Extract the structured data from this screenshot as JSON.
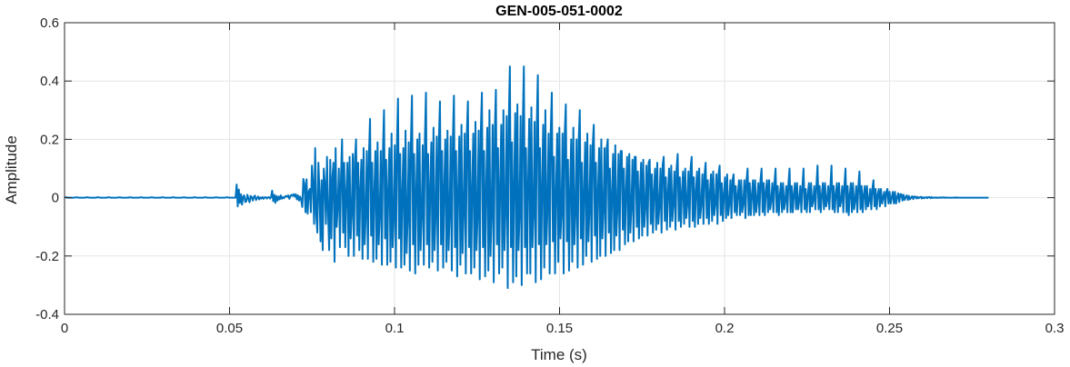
{
  "chart_data": {
    "type": "line",
    "title": "GEN-005-051-0002",
    "xlabel": "Time (s)",
    "ylabel": "Amplitude",
    "xlim": [
      0,
      0.3
    ],
    "ylim": [
      -0.4,
      0.6
    ],
    "xticks": [
      0,
      0.05,
      0.1,
      0.15,
      0.2,
      0.25,
      0.3
    ],
    "xtick_labels": [
      "0",
      "0.05",
      "0.1",
      "0.15",
      "0.2",
      "0.25",
      "0.3"
    ],
    "yticks": [
      -0.4,
      -0.2,
      0,
      0.2,
      0.4,
      0.6
    ],
    "ytick_labels": [
      "-0.4",
      "-0.2",
      "0",
      "0.2",
      "0.4",
      "0.6"
    ],
    "grid": true,
    "series": [
      {
        "color": "#0072BD",
        "sample_period_s": 0.0002,
        "x_start": 0,
        "x_end": 0.28,
        "values": [
          0.001,
          0.001,
          0.001,
          0,
          0,
          0,
          0,
          0,
          0,
          0,
          0.001,
          0.001,
          0.001,
          0,
          0,
          0,
          0,
          0,
          0,
          0,
          0.001,
          0.001,
          0.001,
          0,
          0,
          0,
          0,
          0,
          0,
          0,
          0.001,
          0.001,
          0.001,
          0,
          0,
          0,
          0,
          0,
          0,
          0,
          0.001,
          0.001,
          0.001,
          0,
          0,
          0,
          0,
          0,
          0,
          0,
          0.001,
          0.001,
          0.001,
          0,
          0,
          0,
          0,
          0,
          0,
          0,
          0.001,
          0.001,
          0.001,
          0,
          0,
          0,
          0,
          0,
          0,
          0,
          0.001,
          0.001,
          0.001,
          0,
          0,
          0,
          0,
          0,
          0,
          0,
          0.001,
          0.001,
          0.001,
          0,
          0,
          0,
          0,
          0,
          0,
          0,
          0.001,
          0.001,
          0.001,
          0,
          0,
          0,
          0,
          0,
          0,
          0,
          0.001,
          0.001,
          0.001,
          0,
          0,
          0,
          0,
          0,
          0,
          0,
          0.001,
          0.001,
          0.001,
          0,
          0,
          0,
          0,
          0,
          0,
          0,
          0.001,
          0.001,
          0.001,
          0,
          0,
          0,
          0,
          0,
          0,
          0,
          0.001,
          0.001,
          0.001,
          0,
          0,
          0,
          0,
          0,
          0,
          0,
          0.001,
          0.001,
          0.001,
          0,
          0,
          0,
          0,
          0,
          0,
          0,
          0.001,
          0.001,
          0.001,
          0,
          0,
          0,
          0,
          0,
          0,
          0,
          0.045,
          -0.03,
          0.028,
          -0.018,
          0.012,
          -0.024,
          0.004,
          0.008,
          -0.015,
          -0.012,
          0.01,
          -0.004,
          -0.016,
          0.006,
          0.002,
          -0.01,
          0.003,
          0.007,
          -0.008,
          -0.002,
          0.004,
          -0.006,
          0.001,
          -0.003,
          0.002,
          -0.004,
          0.001,
          0.002,
          -0.003,
          0.001,
          0.002,
          -0.003,
          0.002,
          0.024,
          -0.012,
          0.01,
          -0.018,
          0.006,
          -0.01,
          0.004,
          -0.006,
          0.008,
          -0.004,
          0.002,
          -0.002,
          0.004,
          0.006,
          0.003,
          0.008,
          -0.004,
          0.006,
          0.01,
          0.006,
          0.012,
          0.004,
          0.012,
          -0.006,
          0.008,
          -0.01,
          0.004,
          -0.008,
          -0.032,
          0.064,
          0.048,
          -0.05,
          0.063,
          -0.055,
          0.02,
          0.03,
          -0.05,
          0.11,
          0.05,
          -0.09,
          0.17,
          -0.06,
          -0.12,
          0.12,
          0.02,
          -0.15,
          0.06,
          -0.18,
          0.1,
          0.05,
          -0.09,
          0.14,
          -0.05,
          -0.18,
          0.13,
          -0.14,
          0.07,
          0.12,
          -0.22,
          0.17,
          -0.1,
          -0.03,
          0.1,
          -0.17,
          0.07,
          0.2,
          -0.12,
          0.12,
          -0.17,
          0.02,
          0.12,
          -0.2,
          0.14,
          -0.14,
          -0.05,
          0.15,
          -0.2,
          0.13,
          0.2,
          -0.13,
          0.12,
          -0.18,
          0.03,
          0.13,
          -0.21,
          0.17,
          -0.16,
          -0.06,
          0.16,
          -0.21,
          0.15,
          0.27,
          -0.13,
          0.12,
          -0.22,
          0.02,
          0.16,
          -0.21,
          0.19,
          -0.16,
          -0.06,
          0.16,
          -0.23,
          0.16,
          0.3,
          -0.14,
          0.13,
          -0.23,
          0.03,
          0.17,
          -0.22,
          0.22,
          -0.17,
          -0.07,
          0.18,
          -0.24,
          0.18,
          0.34,
          -0.14,
          0.15,
          -0.24,
          0.02,
          0.17,
          -0.23,
          0.23,
          -0.19,
          -0.07,
          0.19,
          -0.25,
          0.19,
          0.35,
          -0.16,
          0.15,
          -0.26,
          0.03,
          0.2,
          -0.23,
          0.22,
          -0.18,
          -0.06,
          0.18,
          -0.23,
          0.2,
          0.36,
          -0.16,
          0.15,
          -0.24,
          0.04,
          0.19,
          -0.22,
          0.24,
          -0.18,
          -0.06,
          0.21,
          -0.25,
          0.2,
          0.33,
          -0.16,
          0.16,
          -0.24,
          0.04,
          0.2,
          -0.22,
          0.23,
          -0.18,
          -0.06,
          0.21,
          -0.25,
          0.2,
          0.35,
          -0.17,
          0.16,
          -0.27,
          0.03,
          0.21,
          -0.23,
          0.25,
          -0.19,
          -0.05,
          0.22,
          -0.26,
          0.22,
          0.33,
          -0.17,
          0.16,
          -0.26,
          0.04,
          0.22,
          -0.24,
          0.26,
          -0.18,
          -0.06,
          0.23,
          -0.28,
          0.23,
          0.36,
          -0.17,
          0.16,
          -0.27,
          0.04,
          0.24,
          -0.25,
          0.3,
          -0.2,
          -0.05,
          0.25,
          -0.29,
          0.23,
          0.37,
          -0.16,
          0.17,
          -0.26,
          0.05,
          0.25,
          -0.24,
          0.3,
          -0.18,
          -0.04,
          0.28,
          -0.31,
          0.27,
          0.45,
          -0.17,
          0.19,
          -0.29,
          0.06,
          0.29,
          -0.27,
          0.32,
          -0.18,
          -0.06,
          0.28,
          -0.3,
          0.25,
          0.45,
          -0.17,
          0.17,
          -0.26,
          0.06,
          0.27,
          -0.26,
          0.31,
          -0.17,
          -0.05,
          0.26,
          -0.29,
          0.25,
          0.42,
          -0.16,
          0.17,
          -0.28,
          0.05,
          0.25,
          -0.24,
          0.3,
          -0.16,
          -0.04,
          0.22,
          -0.26,
          0.23,
          0.36,
          -0.15,
          0.14,
          -0.26,
          0.03,
          0.22,
          -0.22,
          0.24,
          -0.14,
          -0.05,
          0.22,
          -0.26,
          0.22,
          0.32,
          -0.15,
          0.13,
          -0.25,
          0.03,
          0.2,
          -0.22,
          0.24,
          -0.16,
          -0.05,
          0.2,
          -0.24,
          0.2,
          0.3,
          -0.14,
          0.12,
          -0.23,
          0.03,
          0.19,
          -0.2,
          0.22,
          -0.15,
          -0.04,
          0.18,
          -0.22,
          0.18,
          0.25,
          -0.13,
          0.12,
          -0.21,
          0.03,
          0.17,
          -0.2,
          0.2,
          -0.14,
          -0.04,
          0.17,
          -0.2,
          0.17,
          0.2,
          -0.12,
          0.1,
          -0.19,
          0.02,
          0.15,
          -0.18,
          0.18,
          -0.13,
          -0.04,
          0.15,
          -0.18,
          0.16,
          0.16,
          -0.11,
          0.1,
          -0.16,
          0.02,
          0.14,
          -0.15,
          0.15,
          -0.12,
          -0.03,
          0.13,
          -0.15,
          0.14,
          0.14,
          -0.1,
          0.09,
          -0.14,
          0.02,
          0.12,
          -0.13,
          0.13,
          -0.1,
          -0.03,
          0.11,
          -0.13,
          0.12,
          0.13,
          -0.09,
          0.08,
          -0.12,
          0.02,
          0.1,
          -0.11,
          0.12,
          -0.09,
          -0.03,
          0.1,
          -0.12,
          0.11,
          0.14,
          -0.08,
          0.07,
          -0.11,
          0.02,
          0.1,
          -0.1,
          0.11,
          -0.08,
          -0.02,
          0.09,
          -0.11,
          0.1,
          0.15,
          -0.08,
          0.07,
          -0.1,
          0.02,
          0.09,
          -0.09,
          0.1,
          -0.07,
          -0.02,
          0.09,
          -0.1,
          0.1,
          0.14,
          -0.08,
          0.07,
          -0.1,
          0.02,
          0.09,
          -0.09,
          0.1,
          -0.07,
          -0.02,
          0.08,
          -0.09,
          0.08,
          0.12,
          -0.07,
          0.06,
          -0.09,
          0.02,
          0.08,
          -0.08,
          0.09,
          -0.06,
          -0.02,
          0.08,
          -0.09,
          0.08,
          0.11,
          -0.06,
          0.05,
          -0.08,
          0.01,
          0.07,
          -0.07,
          0.08,
          -0.06,
          -0.02,
          0.06,
          -0.07,
          0.06,
          0.08,
          -0.05,
          0.04,
          -0.06,
          0.01,
          0.06,
          -0.06,
          0.06,
          -0.05,
          -0.02,
          0.06,
          -0.07,
          0.06,
          0.1,
          -0.06,
          0.05,
          -0.06,
          0.01,
          0.06,
          -0.06,
          0.06,
          -0.05,
          -0.01,
          0.05,
          -0.06,
          0.06,
          0.1,
          -0.05,
          0.05,
          -0.06,
          0.02,
          0.06,
          -0.05,
          0.06,
          -0.04,
          -0.01,
          0.05,
          -0.05,
          0.05,
          0.1,
          -0.05,
          0.04,
          -0.06,
          0.01,
          0.05,
          -0.05,
          0.05,
          -0.04,
          -0.01,
          0.04,
          -0.05,
          0.05,
          0.1,
          -0.05,
          0.04,
          -0.05,
          0.01,
          0.05,
          -0.04,
          0.05,
          -0.04,
          -0.01,
          0.04,
          -0.05,
          0.04,
          0.1,
          -0.04,
          0.03,
          -0.05,
          0.01,
          0.05,
          -0.05,
          0.05,
          -0.03,
          -0.01,
          0.04,
          -0.04,
          0.04,
          0.11,
          -0.04,
          0.04,
          -0.05,
          0.01,
          0.05,
          -0.04,
          0.05,
          -0.03,
          -0.01,
          0.04,
          -0.04,
          0.04,
          0.11,
          -0.04,
          0.04,
          -0.05,
          0.01,
          0.05,
          -0.05,
          0.05,
          -0.03,
          -0.01,
          0.04,
          -0.05,
          0.04,
          0.1,
          -0.05,
          0.04,
          -0.06,
          0.01,
          0.05,
          -0.05,
          0.05,
          -0.04,
          -0.01,
          0.04,
          -0.05,
          0.04,
          0.09,
          -0.04,
          0.04,
          -0.05,
          0.01,
          0.04,
          -0.04,
          0.04,
          -0.03,
          -0.01,
          0.03,
          -0.04,
          0.03,
          0.06,
          -0.03,
          0.03,
          -0.04,
          0.01,
          0.03,
          -0.03,
          0.03,
          -0.02,
          0,
          0.02,
          -0.03,
          0.02,
          0.03,
          -0.02,
          0.02,
          -0.02,
          0,
          0.02,
          -0.02,
          0.02,
          -0.02,
          0,
          0.015,
          -0.015,
          0.012,
          0.012,
          -0.01,
          0.01,
          -0.008,
          0.002,
          0.008,
          -0.008,
          0.006,
          -0.006,
          0,
          0.005,
          -0.005,
          0.004,
          0.004,
          -0.003,
          0.003,
          -0.002,
          0.001,
          0.003,
          -0.003,
          0.002,
          -0.002,
          0,
          0.002,
          -0.002,
          0.002,
          0.002,
          -0.002,
          0.002,
          -0.001,
          0,
          0.001,
          -0.001,
          0.001,
          -0.001,
          0,
          0.001,
          -0.001,
          0.001,
          0.001,
          -0.001,
          0.001,
          0,
          0,
          0,
          0,
          0,
          0,
          0,
          0,
          0.001,
          -0.001,
          0.001,
          0,
          0,
          0,
          0,
          0,
          0,
          0,
          0,
          0,
          0,
          0,
          0,
          0,
          0,
          0,
          0,
          0,
          0,
          0,
          0,
          0,
          0,
          0,
          0,
          0,
          0,
          0,
          0,
          0
        ]
      }
    ]
  }
}
